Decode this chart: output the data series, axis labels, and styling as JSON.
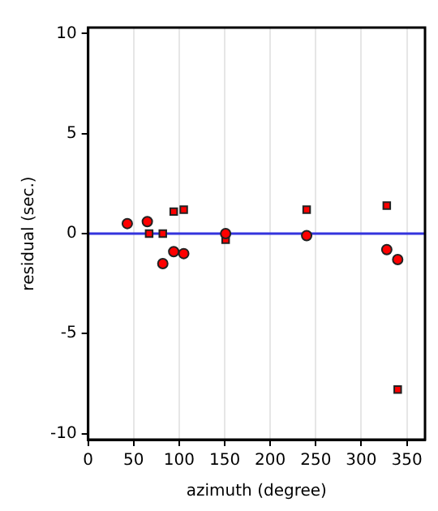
{
  "chart_data": {
    "type": "scatter",
    "xlabel": "azimuth (degree)",
    "ylabel": "residual (sec.)",
    "xlim": [
      0,
      370
    ],
    "xticks": [
      0,
      50,
      100,
      150,
      200,
      250,
      300,
      350
    ],
    "ylim": [
      -10.3,
      10.3
    ],
    "yticks": [
      -10,
      -5,
      0,
      5,
      10
    ],
    "grid": "x",
    "legend": false,
    "ref_lines": [
      {
        "axis": "y",
        "value": 0,
        "color": "#3333dd"
      }
    ],
    "series": [
      {
        "color": "#ff0000",
        "marker": "circle",
        "x": [
          43,
          65,
          82,
          94,
          105,
          151,
          240,
          328,
          340
        ],
        "values": [
          0.5,
          0.6,
          -1.5,
          -0.9,
          -1.0,
          0,
          -0.1,
          -0.8,
          -1.3
        ]
      },
      {
        "color": "#ff0000",
        "marker": "square",
        "x": [
          67,
          82,
          94,
          105,
          151,
          240,
          328,
          340
        ],
        "values": [
          0,
          0,
          1.1,
          1.2,
          -0.3,
          1.2,
          1.4,
          -7.8
        ]
      }
    ]
  }
}
